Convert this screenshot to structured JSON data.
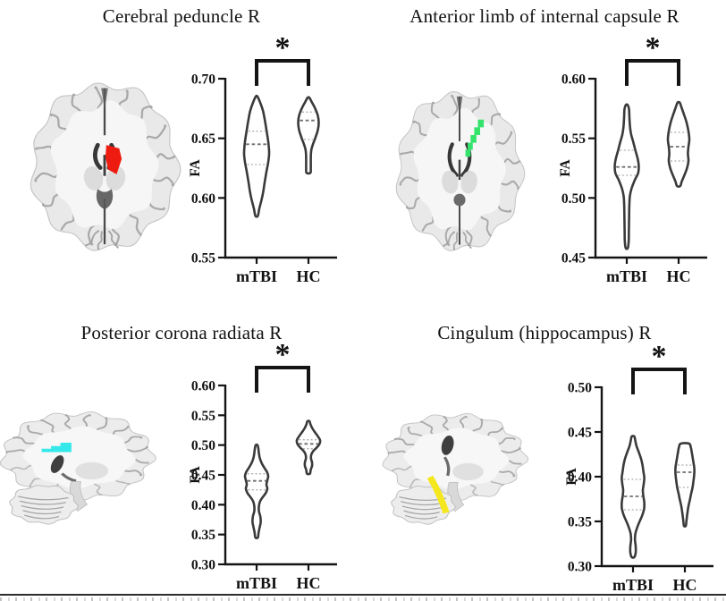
{
  "figure_title": "",
  "chart_data": [
    {
      "type": "violin",
      "title": "Cerebral peduncle R",
      "ylabel": "FA",
      "categories": [
        "mTBI",
        "HC"
      ],
      "ylim": [
        0.55,
        0.7
      ],
      "yticks": [
        "0.55",
        "0.60",
        "0.65",
        "0.70"
      ],
      "grid": false,
      "significance": {
        "label": "*",
        "between": [
          "mTBI",
          "HC"
        ]
      },
      "brain": {
        "view": "axial",
        "roi_color": "#ee1c10"
      },
      "series": [
        {
          "name": "mTBI",
          "min": 0.585,
          "max": 0.685,
          "median": 0.645,
          "q1": 0.628,
          "q3": 0.656,
          "profile": [
            [
              0.685,
              1
            ],
            [
              0.679,
              4.5
            ],
            [
              0.672,
              7.5
            ],
            [
              0.664,
              9.5
            ],
            [
              0.657,
              11
            ],
            [
              0.65,
              12.5
            ],
            [
              0.644,
              13.5
            ],
            [
              0.637,
              14
            ],
            [
              0.63,
              13
            ],
            [
              0.622,
              11
            ],
            [
              0.614,
              9.2
            ],
            [
              0.606,
              7.6
            ],
            [
              0.598,
              5.4
            ],
            [
              0.591,
              3
            ],
            [
              0.585,
              1.4
            ]
          ]
        },
        {
          "name": "HC",
          "min": 0.621,
          "max": 0.684,
          "median": 0.665,
          "q1": 0.649,
          "q3": 0.672,
          "profile": [
            [
              0.684,
              1
            ],
            [
              0.68,
              4
            ],
            [
              0.675,
              7.5
            ],
            [
              0.669,
              10.5
            ],
            [
              0.663,
              11.5
            ],
            [
              0.657,
              10.5
            ],
            [
              0.651,
              8
            ],
            [
              0.646,
              5.5
            ],
            [
              0.641,
              3.4
            ],
            [
              0.636,
              2.7
            ],
            [
              0.63,
              2.6
            ],
            [
              0.625,
              2.6
            ],
            [
              0.621,
              2.2
            ]
          ]
        }
      ]
    },
    {
      "type": "violin",
      "title": "Anterior limb of internal capsule R",
      "ylabel": "FA",
      "categories": [
        "mTBI",
        "HC"
      ],
      "ylim": [
        0.45,
        0.6
      ],
      "yticks": [
        "0.45",
        "0.50",
        "0.55",
        "0.60"
      ],
      "grid": false,
      "significance": {
        "label": "*",
        "between": [
          "mTBI",
          "HC"
        ]
      },
      "brain": {
        "view": "axial",
        "roi_color": "#35e36c"
      },
      "series": [
        {
          "name": "mTBI",
          "min": 0.458,
          "max": 0.578,
          "median": 0.526,
          "q1": 0.519,
          "q3": 0.54,
          "profile": [
            [
              0.578,
              1
            ],
            [
              0.574,
              2.6
            ],
            [
              0.567,
              3
            ],
            [
              0.56,
              3.6
            ],
            [
              0.553,
              5
            ],
            [
              0.546,
              7.6
            ],
            [
              0.539,
              10
            ],
            [
              0.533,
              12.2
            ],
            [
              0.527,
              13.4
            ],
            [
              0.521,
              12.8
            ],
            [
              0.515,
              9
            ],
            [
              0.508,
              5.4
            ],
            [
              0.501,
              3.4
            ],
            [
              0.492,
              2.8
            ],
            [
              0.483,
              2.6
            ],
            [
              0.473,
              2.4
            ],
            [
              0.464,
              2.2
            ],
            [
              0.458,
              1.2
            ]
          ]
        },
        {
          "name": "HC",
          "min": 0.51,
          "max": 0.58,
          "median": 0.543,
          "q1": 0.531,
          "q3": 0.555,
          "profile": [
            [
              0.58,
              1.2
            ],
            [
              0.576,
              3.2
            ],
            [
              0.57,
              6
            ],
            [
              0.563,
              9
            ],
            [
              0.556,
              11
            ],
            [
              0.549,
              12
            ],
            [
              0.543,
              11
            ],
            [
              0.537,
              10.4
            ],
            [
              0.531,
              11
            ],
            [
              0.525,
              9.4
            ],
            [
              0.519,
              6.4
            ],
            [
              0.514,
              3.6
            ],
            [
              0.51,
              1.8
            ]
          ]
        }
      ]
    },
    {
      "type": "violin",
      "title": "Posterior corona radiata R",
      "ylabel": "FA",
      "categories": [
        "mTBI",
        "HC"
      ],
      "ylim": [
        0.3,
        0.6
      ],
      "yticks": [
        "0.30",
        "0.35",
        "0.40",
        "0.45",
        "0.50",
        "0.55",
        "0.60"
      ],
      "grid": false,
      "significance": {
        "label": "*",
        "between": [
          "mTBI",
          "HC"
        ]
      },
      "brain": {
        "view": "sagittal",
        "roi_color": "#35e8ea"
      },
      "series": [
        {
          "name": "mTBI",
          "min": 0.345,
          "max": 0.5,
          "median": 0.44,
          "q1": 0.425,
          "q3": 0.452,
          "profile": [
            [
              0.5,
              1
            ],
            [
              0.494,
              2
            ],
            [
              0.486,
              2.6
            ],
            [
              0.478,
              3.6
            ],
            [
              0.47,
              5.6
            ],
            [
              0.462,
              8.6
            ],
            [
              0.455,
              11.6
            ],
            [
              0.448,
              13
            ],
            [
              0.441,
              12
            ],
            [
              0.434,
              11
            ],
            [
              0.427,
              12
            ],
            [
              0.42,
              10.4
            ],
            [
              0.413,
              7
            ],
            [
              0.406,
              4
            ],
            [
              0.398,
              2.6
            ],
            [
              0.389,
              2.6
            ],
            [
              0.38,
              4.2
            ],
            [
              0.371,
              4.6
            ],
            [
              0.362,
              3.4
            ],
            [
              0.353,
              2.2
            ],
            [
              0.345,
              1.4
            ]
          ]
        },
        {
          "name": "HC",
          "min": 0.452,
          "max": 0.54,
          "median": 0.502,
          "q1": 0.494,
          "q3": 0.509,
          "profile": [
            [
              0.54,
              1.2
            ],
            [
              0.535,
              2.2
            ],
            [
              0.529,
              4
            ],
            [
              0.522,
              7
            ],
            [
              0.515,
              10.4
            ],
            [
              0.508,
              13
            ],
            [
              0.502,
              12.4
            ],
            [
              0.496,
              9.4
            ],
            [
              0.49,
              5.4
            ],
            [
              0.484,
              3.2
            ],
            [
              0.478,
              2.8
            ],
            [
              0.471,
              4
            ],
            [
              0.465,
              4
            ],
            [
              0.459,
              2.6
            ],
            [
              0.452,
              1.6
            ]
          ]
        }
      ]
    },
    {
      "type": "violin",
      "title": "Cingulum (hippocampus) R",
      "ylabel": "FA",
      "categories": [
        "mTBI",
        "HC"
      ],
      "ylim": [
        0.3,
        0.5
      ],
      "yticks": [
        "0.30",
        "0.35",
        "0.40",
        "0.45",
        "0.50"
      ],
      "grid": false,
      "significance": {
        "label": "*",
        "between": [
          "mTBI",
          "HC"
        ]
      },
      "brain": {
        "view": "sagittal",
        "roi_color": "#f5e71e"
      },
      "series": [
        {
          "name": "mTBI",
          "min": 0.31,
          "max": 0.445,
          "median": 0.378,
          "q1": 0.363,
          "q3": 0.397,
          "profile": [
            [
              0.445,
              1.4
            ],
            [
              0.44,
              2.6
            ],
            [
              0.434,
              4
            ],
            [
              0.427,
              6.6
            ],
            [
              0.42,
              9
            ],
            [
              0.413,
              10.6
            ],
            [
              0.406,
              11.6
            ],
            [
              0.399,
              12.6
            ],
            [
              0.392,
              12
            ],
            [
              0.385,
              11
            ],
            [
              0.378,
              11.6
            ],
            [
              0.371,
              12.6
            ],
            [
              0.364,
              12.4
            ],
            [
              0.357,
              10.4
            ],
            [
              0.35,
              7.4
            ],
            [
              0.343,
              4.6
            ],
            [
              0.336,
              2.6
            ],
            [
              0.329,
              2.2
            ],
            [
              0.322,
              3
            ],
            [
              0.315,
              3
            ],
            [
              0.31,
              1.4
            ]
          ]
        },
        {
          "name": "HC",
          "min": 0.345,
          "max": 0.437,
          "median": 0.405,
          "q1": 0.388,
          "q3": 0.413,
          "profile": [
            [
              0.437,
              4.6
            ],
            [
              0.433,
              6.6
            ],
            [
              0.428,
              7.6
            ],
            [
              0.422,
              8.6
            ],
            [
              0.416,
              9.6
            ],
            [
              0.409,
              10.6
            ],
            [
              0.402,
              10.4
            ],
            [
              0.395,
              9.6
            ],
            [
              0.388,
              8.6
            ],
            [
              0.381,
              7
            ],
            [
              0.374,
              5.6
            ],
            [
              0.367,
              4
            ],
            [
              0.359,
              2.8
            ],
            [
              0.351,
              1.8
            ],
            [
              0.345,
              1
            ]
          ]
        }
      ]
    }
  ],
  "style": {
    "violin_stroke": "#3a3a3a",
    "axis_color": "#141414",
    "median_color": "#6e6e6e",
    "quartile_color": "#aeaeae"
  }
}
